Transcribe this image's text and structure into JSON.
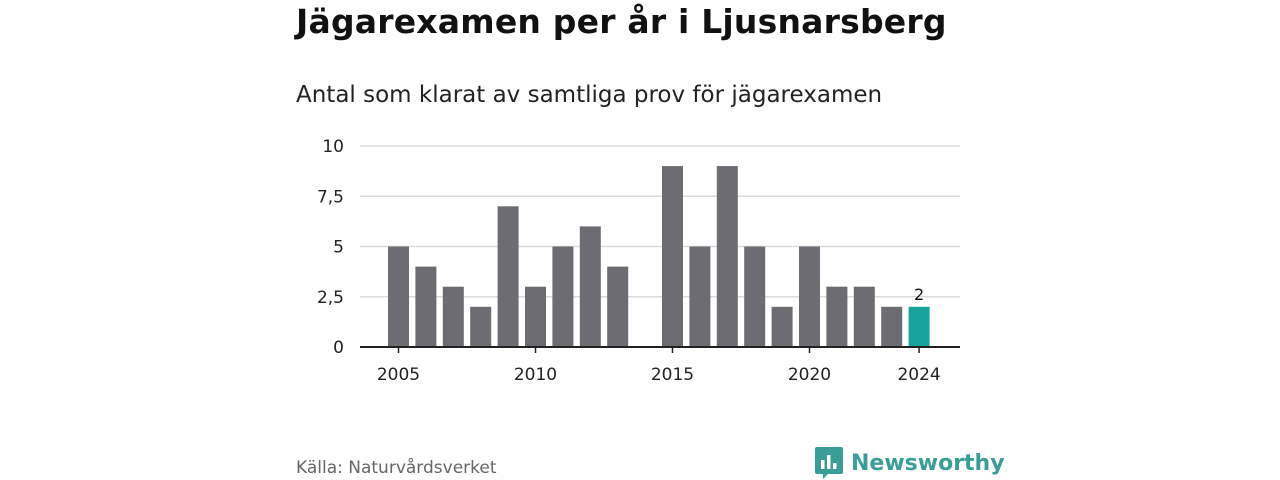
{
  "header": {
    "title": "Jägarexamen per år i Ljusnarsberg",
    "subtitle": "Antal som klarat av samtliga prov för jägarexamen"
  },
  "footer": {
    "source": "Källa: Naturvårdsverket",
    "brand": "Newsworthy",
    "brand_icon": "bar-chart-speech-bubble-icon"
  },
  "colors": {
    "bar": "#6d6c72",
    "highlight": "#18a39b",
    "grid": "#d9d9d9",
    "axis": "#222222",
    "brand": "#3a9e98"
  },
  "chart_data": {
    "type": "bar",
    "title": "Jägarexamen per år i Ljusnarsberg",
    "subtitle": "Antal som klarat av samtliga prov för jägarexamen",
    "categories": [
      2005,
      2006,
      2007,
      2008,
      2009,
      2010,
      2011,
      2012,
      2013,
      2014,
      2015,
      2016,
      2017,
      2018,
      2019,
      2020,
      2021,
      2022,
      2023,
      2024
    ],
    "values": [
      5,
      4,
      3,
      2,
      7,
      3,
      5,
      6,
      4,
      0,
      9,
      5,
      9,
      5,
      2,
      5,
      3,
      3,
      2,
      2
    ],
    "highlight_category": 2024,
    "ylim": [
      0,
      10
    ],
    "yticks": [
      0,
      2.5,
      5,
      7.5,
      10
    ],
    "ytick_labels": [
      "0",
      "2,5",
      "5",
      "7,5",
      "10"
    ],
    "xticks": [
      2005,
      2010,
      2015,
      2020,
      2024
    ],
    "xtick_labels": [
      "2005",
      "2010",
      "2015",
      "2020",
      "2024"
    ],
    "data_labels": [
      {
        "category": 2024,
        "text": "2"
      }
    ],
    "grid": true,
    "xlabel": "",
    "ylabel": ""
  }
}
